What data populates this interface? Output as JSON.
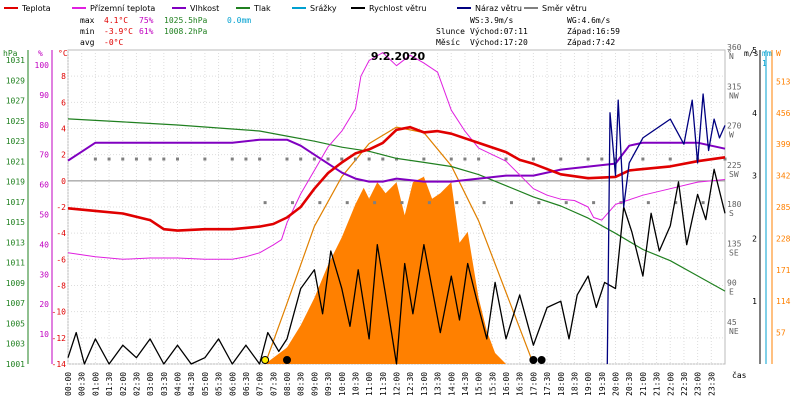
{
  "legend": [
    {
      "label": "Teplota",
      "color": "#e00000"
    },
    {
      "label": "Přízemní teplota",
      "color": "#e020e0"
    },
    {
      "label": "Vlhkost",
      "color": "#8000c0"
    },
    {
      "label": "Tlak",
      "color": "#208020"
    },
    {
      "label": "Srážky",
      "color": "#00a0d0"
    },
    {
      "label": "Rychlost větru",
      "color": "#000000"
    },
    {
      "label": "Náraz větru",
      "color": "#000080"
    },
    {
      "label": "Směr větru",
      "color": "#808080"
    }
  ],
  "stats": {
    "max": {
      "label": "max",
      "temp": "4.1°C",
      "hum": "75%",
      "press": "1025.5hPa",
      "rain": "0.0mm"
    },
    "min": {
      "label": "min",
      "temp": "-3.9°C",
      "hum": "61%",
      "press": "1008.2hPa"
    },
    "avg": {
      "label": "avg",
      "temp": "-0°C"
    }
  },
  "wind_info": {
    "ws": "WS:3.9m/s",
    "wg": "WG:4.6m/s"
  },
  "sun_info": {
    "label": "Slunce",
    "rise": "Východ:07:11",
    "set": "Západ:16:59"
  },
  "moon_info": {
    "label": "Měsíc",
    "rise": "Východ:17:20",
    "set": "Západ:7:42"
  },
  "chart_data": {
    "type": "line",
    "title": "9.2.2020",
    "xlabel": "čas",
    "x_ticks": [
      "00:00",
      "00:30",
      "01:00",
      "01:30",
      "02:00",
      "02:30",
      "03:00",
      "03:30",
      "04:00",
      "04:30",
      "05:00",
      "05:30",
      "06:00",
      "06:30",
      "07:00",
      "07:30",
      "08:00",
      "08:30",
      "09:00",
      "09:30",
      "10:00",
      "10:30",
      "11:00",
      "11:30",
      "12:00",
      "12:30",
      "13:00",
      "13:30",
      "14:00",
      "14:30",
      "15:00",
      "15:30",
      "16:00",
      "16:30",
      "17:00",
      "17:30",
      "18:00",
      "18:30",
      "19:00",
      "19:30",
      "20:00",
      "20:30",
      "21:00",
      "21:30",
      "22:00",
      "22:30",
      "23:00",
      "23:30"
    ],
    "axes": {
      "pressure": {
        "label": "hPa",
        "color": "#208020",
        "ticks": [
          "1031",
          "1029",
          "1027",
          "1025",
          "1023",
          "1021",
          "1019",
          "1017",
          "1015",
          "1013",
          "1011",
          "1009",
          "1007",
          "1005",
          "1003",
          "1001"
        ],
        "range": [
          1001,
          1032
        ]
      },
      "humidity": {
        "label": "%",
        "color": "#c000c0",
        "ticks": [
          "100",
          "90",
          "80",
          "70",
          "60",
          "50",
          "40",
          "30",
          "20",
          "10"
        ],
        "range": [
          0,
          105
        ]
      },
      "temperature": {
        "label": "°C",
        "color": "#e00000",
        "ticks": [
          "8",
          "6",
          "4",
          "2",
          "0",
          "-2",
          "-4",
          "-6",
          "-8",
          "-10",
          "-12",
          "-14"
        ],
        "range": [
          -14,
          10
        ]
      },
      "direction": {
        "label": "°",
        "color": "#606060",
        "ticks": [
          [
            "360",
            "N"
          ],
          [
            "315",
            "NW"
          ],
          [
            "270",
            "W"
          ],
          [
            "225",
            "SW"
          ],
          [
            "180",
            "S"
          ],
          [
            "135",
            "SE"
          ],
          [
            "90",
            "E"
          ],
          [
            "45",
            "NE"
          ]
        ],
        "range": [
          0,
          360
        ]
      },
      "wind": {
        "label": "m/s",
        "color": "#000000",
        "ticks": [
          "5",
          "4",
          "3",
          "2",
          "1"
        ],
        "range": [
          0,
          5
        ]
      },
      "rain": {
        "label": "mm",
        "color": "#00a0d0",
        "ticks": [
          "1"
        ]
      },
      "radiation": {
        "label": "W",
        "color": "#ff8000",
        "ticks": [
          "513",
          "456",
          "399",
          "342",
          "285",
          "228",
          "171",
          "114",
          "57"
        ],
        "range": [
          0,
          570
        ]
      }
    },
    "series": {
      "temperature": {
        "name": "Teplota",
        "color": "#e00000",
        "axis": "temperature",
        "x": [
          0,
          1,
          2,
          3,
          3.5,
          4,
          5,
          6,
          6.5,
          7,
          7.5,
          8,
          8.5,
          9,
          9.5,
          10,
          10.5,
          11,
          11.5,
          12,
          12.5,
          13,
          13.5,
          14,
          15,
          16,
          16.5,
          17,
          18,
          19,
          20,
          20.5,
          21,
          22,
          23,
          24
        ],
        "y": [
          -2.1,
          -2.3,
          -2.5,
          -3,
          -3.7,
          -3.8,
          -3.7,
          -3.7,
          -3.6,
          -3.5,
          -3.3,
          -2.8,
          -2,
          -0.6,
          0.6,
          1.4,
          2.1,
          2.4,
          2.9,
          3.9,
          4.1,
          3.7,
          3.8,
          3.6,
          2.9,
          2.2,
          1.6,
          1.3,
          0.5,
          0.2,
          0.3,
          0.8,
          0.9,
          1.1,
          1.5,
          1.8
        ]
      },
      "ground_temperature": {
        "name": "Přízemní teplota",
        "color": "#e020e0",
        "axis": "temperature",
        "x": [
          0,
          1,
          2,
          3,
          4,
          5,
          6,
          6.5,
          7,
          7.5,
          7.8,
          8,
          8.5,
          9,
          9.5,
          10,
          10.5,
          10.7,
          11,
          11.5,
          12,
          12.5,
          13,
          13.5,
          14,
          14.5,
          15,
          16,
          17,
          17.5,
          18,
          18.5,
          19,
          19.2,
          19.5,
          20,
          21,
          22,
          23,
          24
        ],
        "y": [
          -5.5,
          -5.8,
          -6,
          -5.9,
          -5.9,
          -6,
          -6,
          -5.8,
          -5.5,
          -4.9,
          -4.5,
          -3.2,
          -1,
          0.8,
          2.6,
          3.8,
          5.5,
          8,
          9.2,
          9.8,
          8.8,
          9.6,
          9,
          8.3,
          5.4,
          3.8,
          2.5,
          1.5,
          -0.6,
          -1.1,
          -1.4,
          -1.5,
          -2,
          -2.8,
          -3,
          -1.8,
          -1.1,
          -0.6,
          -0.1,
          0.1
        ]
      },
      "humidity": {
        "name": "Vlhkost",
        "color": "#8000c0",
        "axis": "humidity",
        "x": [
          0,
          0.5,
          1,
          2,
          4,
          6,
          7,
          8,
          8.5,
          9,
          10,
          10.5,
          11,
          11.5,
          12,
          13,
          14,
          15,
          16,
          17,
          18,
          19,
          20,
          20.5,
          21,
          22,
          23,
          24
        ],
        "y": [
          68,
          71,
          74,
          74,
          74,
          74,
          75,
          75,
          73,
          70,
          64,
          62,
          61,
          61,
          62,
          61,
          61,
          62,
          63,
          63,
          65,
          66,
          67,
          73,
          74,
          74,
          74,
          72
        ]
      },
      "pressure": {
        "name": "Tlak",
        "color": "#208020",
        "axis": "pressure",
        "x": [
          0,
          2,
          4,
          5,
          6,
          7,
          8,
          9,
          10,
          11,
          12,
          13,
          14,
          15,
          16,
          17,
          18,
          19,
          20,
          21,
          22,
          23,
          24
        ],
        "y": [
          1025.2,
          1024.9,
          1024.6,
          1024.4,
          1024.2,
          1024.0,
          1023.5,
          1023.0,
          1022.4,
          1022.0,
          1021.3,
          1020.9,
          1020.5,
          1019.7,
          1018.6,
          1017.5,
          1016.6,
          1015.4,
          1013.9,
          1012.3,
          1011.2,
          1009.7,
          1008.2
        ]
      },
      "wind_speed": {
        "name": "Rychlost větru",
        "color": "#000000",
        "axis": "wind",
        "x": [
          0,
          0.3,
          0.6,
          1,
          1.5,
          2,
          2.5,
          3,
          3.5,
          4,
          4.5,
          5,
          5.5,
          6,
          6.5,
          7,
          7.3,
          7.7,
          8,
          8.5,
          9,
          9.3,
          9.6,
          10,
          10.3,
          10.6,
          11,
          11.3,
          11.6,
          12,
          12.3,
          12.6,
          13,
          13.3,
          13.6,
          14,
          14.3,
          14.6,
          15,
          15.3,
          15.6,
          16,
          16.5,
          17,
          17.5,
          18,
          18.3,
          18.6,
          19,
          19.3,
          19.6,
          20,
          20.3,
          20.6,
          21,
          21.3,
          21.6,
          22,
          22.3,
          22.6,
          23,
          23.3,
          23.6,
          24
        ],
        "y": [
          0.1,
          0.5,
          0,
          0.4,
          0,
          0.3,
          0.1,
          0.4,
          0,
          0.3,
          0,
          0.1,
          0.4,
          0,
          0.3,
          0,
          0.5,
          0.2,
          0.4,
          1.2,
          1.5,
          0.8,
          1.8,
          1.2,
          0.6,
          1.5,
          0.4,
          1.9,
          1.1,
          0,
          1.6,
          0.8,
          1.9,
          1.2,
          0.5,
          1.4,
          0.7,
          1.6,
          0.9,
          0.4,
          1.3,
          0.4,
          1.1,
          0.3,
          0.9,
          1,
          0.4,
          1.1,
          1.4,
          0.9,
          1.3,
          1.2,
          2.5,
          2.1,
          1.4,
          2.4,
          1.8,
          2.2,
          2.9,
          1.9,
          2.7,
          2.3,
          3.1,
          2.4
        ]
      },
      "wind_gust": {
        "name": "Náraz větru",
        "color": "#000080",
        "axis": "wind",
        "x": [
          19.7,
          19.8,
          20,
          20.1,
          20.3,
          20.5,
          21,
          22,
          22.5,
          22.8,
          23,
          23.2,
          23.4,
          23.6,
          23.8,
          24
        ],
        "y": [
          0,
          4,
          3,
          4.2,
          2.5,
          3.2,
          3.6,
          3.9,
          3.5,
          4.2,
          3.2,
          4.3,
          3.4,
          3.9,
          3.6,
          3.8
        ]
      },
      "wind_direction": {
        "name": "Směr větru",
        "color": "#808080",
        "axis": "direction",
        "x": [
          1,
          1.5,
          2,
          2.5,
          3,
          3.5,
          4,
          5,
          6,
          6.5,
          7,
          8,
          8.5,
          9,
          9.5,
          10,
          10.5,
          11,
          11.5,
          12,
          13,
          14,
          14.5,
          15,
          16,
          17,
          18,
          19,
          19.5,
          20,
          21,
          22,
          23,
          24,
          7.2,
          8.2,
          9.2,
          10.2,
          11.2,
          12.2,
          13.2,
          14.2,
          15.2,
          16.2,
          17.2,
          18.2,
          19.2,
          20.2,
          21.2,
          22.2,
          23.2
        ],
        "y": [
          235,
          235,
          235,
          235,
          235,
          235,
          235,
          235,
          235,
          235,
          235,
          235,
          235,
          235,
          235,
          235,
          235,
          235,
          235,
          235,
          235,
          235,
          235,
          235,
          235,
          235,
          235,
          235,
          235,
          235,
          235,
          235,
          235,
          235,
          185,
          185,
          185,
          185,
          185,
          185,
          185,
          185,
          185,
          185,
          185,
          185,
          185,
          185,
          185,
          185,
          185
        ]
      },
      "solar_radiation": {
        "name": "",
        "color": "#ff8000",
        "axis": "radiation",
        "x": [
          7.2,
          8,
          8.5,
          9,
          9.5,
          10,
          10.5,
          10.8,
          11,
          11.3,
          11.6,
          12,
          12.3,
          12.6,
          13,
          13.3,
          13.6,
          14,
          14.3,
          14.6,
          15,
          15.3,
          15.6,
          16
        ],
        "y": [
          0,
          30,
          70,
          120,
          180,
          230,
          290,
          320,
          300,
          330,
          310,
          330,
          270,
          330,
          340,
          300,
          310,
          330,
          220,
          240,
          120,
          60,
          20,
          0
        ]
      },
      "solar_theoretical": {
        "name": "",
        "color": "#e08000",
        "axis": "radiation",
        "x": [
          7.2,
          8,
          9,
          10,
          11,
          12,
          13,
          14,
          15,
          16,
          17
        ],
        "y": [
          0,
          110,
          250,
          340,
          400,
          430,
          420,
          360,
          260,
          130,
          0
        ]
      }
    }
  }
}
